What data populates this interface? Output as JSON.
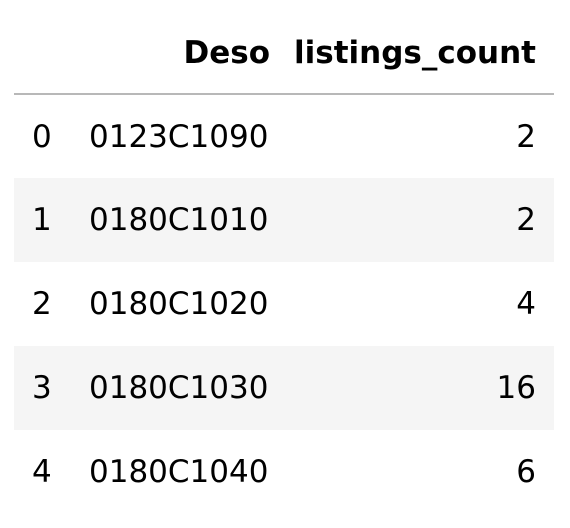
{
  "table": {
    "columns": [
      "Deso",
      "listings_count"
    ],
    "rows": [
      {
        "index": "0",
        "deso": "0123C1090",
        "listings_count": "2"
      },
      {
        "index": "1",
        "deso": "0180C1010",
        "listings_count": "2"
      },
      {
        "index": "2",
        "deso": "0180C1020",
        "listings_count": "4"
      },
      {
        "index": "3",
        "deso": "0180C1030",
        "listings_count": "16"
      },
      {
        "index": "4",
        "deso": "0180C1040",
        "listings_count": "6"
      }
    ]
  },
  "colors": {
    "stripe": "#f5f5f5",
    "header_border": "#b8b8b8",
    "text": "#000000"
  }
}
